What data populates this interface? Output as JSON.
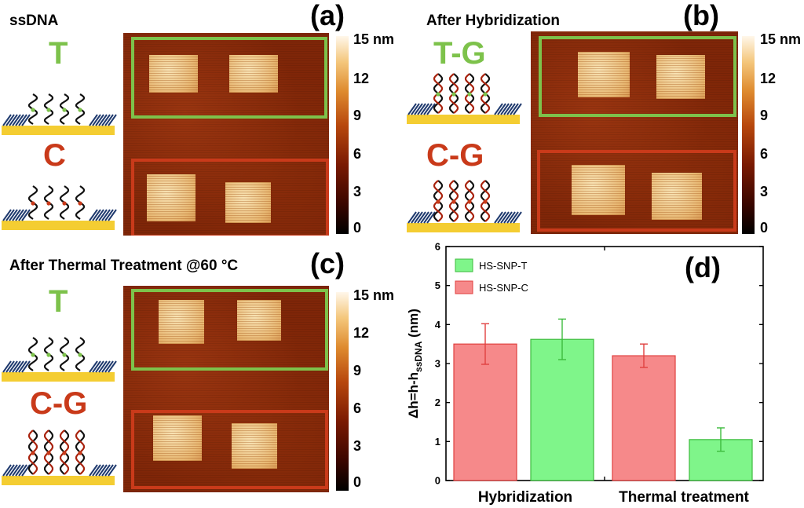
{
  "panels": {
    "a": {
      "title": "ssDNA",
      "label": "(a)",
      "top_letter": "T",
      "bottom_letter": "C"
    },
    "b": {
      "title": "After Hybridization",
      "label": "(b)",
      "top_letter": "T-G",
      "bottom_letter": "C-G"
    },
    "c": {
      "title": "After Thermal Treatment @60 °C",
      "label": "(c)",
      "top_letter": "T",
      "bottom_letter": "C-G"
    },
    "d": {
      "label": "(d)"
    }
  },
  "colorbar": {
    "ticks": [
      "15 nm",
      "12",
      "9",
      "6",
      "3",
      "0"
    ],
    "ticks_b": [
      "15 nm",
      "12",
      "9",
      "6",
      "3",
      "0"
    ]
  },
  "colors": {
    "green": "#7dc24b",
    "red": "#c93a1a",
    "bar_red": "#f6898a",
    "bar_green": "#7ff58a",
    "gold": "#f4cd32"
  },
  "chart_data": {
    "type": "bar",
    "ylabel": "Δh=h-h",
    "ylabel_sub": "ssDNA",
    "ylabel_unit": " (nm)",
    "ylim": [
      0,
      6
    ],
    "yticks": [
      "0",
      "1",
      "2",
      "3",
      "4",
      "5",
      "6"
    ],
    "groups": [
      "Hybridization",
      "Thermal treatment"
    ],
    "series": [
      {
        "name": "HS-SNP-T",
        "color": "#7ff58a",
        "edge": "#3dbb3d"
      },
      {
        "name": "HS-SNP-C",
        "color": "#f6898a",
        "edge": "#e0403f"
      }
    ],
    "bars": [
      {
        "series": "HS-SNP-C",
        "group": "Hybridization",
        "value": 3.5,
        "err": 0.52
      },
      {
        "series": "HS-SNP-T",
        "group": "Hybridization",
        "value": 3.62,
        "err": 0.52
      },
      {
        "series": "HS-SNP-C",
        "group": "Thermal treatment",
        "value": 3.2,
        "err": 0.3
      },
      {
        "series": "HS-SNP-T",
        "group": "Thermal treatment",
        "value": 1.05,
        "err": 0.3
      }
    ]
  }
}
